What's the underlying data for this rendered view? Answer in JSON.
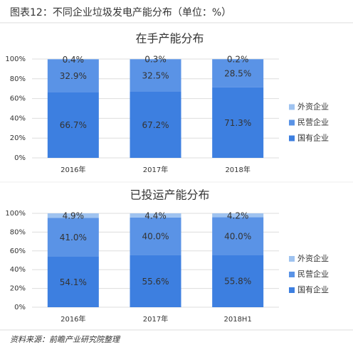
{
  "title": "图表12：不同企业垃圾发电产能分布（单位：%）",
  "source": "资料来源：前瞻产业研究院整理",
  "chart_data": [
    {
      "type": "stacked-bar",
      "title": "在手产能分布",
      "categories": [
        "2016年",
        "2017年",
        "2018年"
      ],
      "series": [
        {
          "name": "国有企业",
          "color": "#3d7fe0",
          "values": [
            66.7,
            67.2,
            71.3
          ],
          "value_labels": [
            "66.7%",
            "67.2%",
            "71.3%"
          ]
        },
        {
          "name": "民营企业",
          "color": "#5a93e6",
          "values": [
            32.9,
            32.5,
            28.5
          ],
          "value_labels": [
            "32.9%",
            "32.5%",
            "28.5%"
          ]
        },
        {
          "name": "外资企业",
          "color": "#9fc3f0",
          "values": [
            0.4,
            0.3,
            0.2
          ],
          "value_labels": [
            "0.4%",
            "0.3%",
            "0.2%"
          ]
        }
      ],
      "ylim": [
        0,
        100
      ],
      "yticks": [
        {
          "value": 0,
          "label": "0%"
        },
        {
          "value": 20,
          "label": "20%"
        },
        {
          "value": 40,
          "label": "40%"
        },
        {
          "value": 60,
          "label": "60%"
        },
        {
          "value": 80,
          "label": "80%"
        },
        {
          "value": 100,
          "label": "100%"
        }
      ],
      "grid": true,
      "legend": "right"
    },
    {
      "type": "stacked-bar",
      "title": "已投运产能分布",
      "categories": [
        "2016年",
        "2017年",
        "2018H1"
      ],
      "series": [
        {
          "name": "国有企业",
          "color": "#3d7fe0",
          "values": [
            54.1,
            55.6,
            55.8
          ],
          "value_labels": [
            "54.1%",
            "55.6%",
            "55.8%"
          ]
        },
        {
          "name": "民营企业",
          "color": "#5a93e6",
          "values": [
            41.0,
            40.0,
            40.0
          ],
          "value_labels": [
            "41.0%",
            "40.0%",
            "40.0%"
          ]
        },
        {
          "name": "外资企业",
          "color": "#9fc3f0",
          "values": [
            4.9,
            4.4,
            4.2
          ],
          "value_labels": [
            "4.9%",
            "4.4%",
            "4.2%"
          ]
        }
      ],
      "ylim": [
        0,
        100
      ],
      "yticks": [
        {
          "value": 0,
          "label": "0%"
        },
        {
          "value": 20,
          "label": "20%"
        },
        {
          "value": 40,
          "label": "40%"
        },
        {
          "value": 60,
          "label": "60%"
        },
        {
          "value": 80,
          "label": "80%"
        },
        {
          "value": 100,
          "label": "100%"
        }
      ],
      "grid": true,
      "legend": "right"
    }
  ]
}
